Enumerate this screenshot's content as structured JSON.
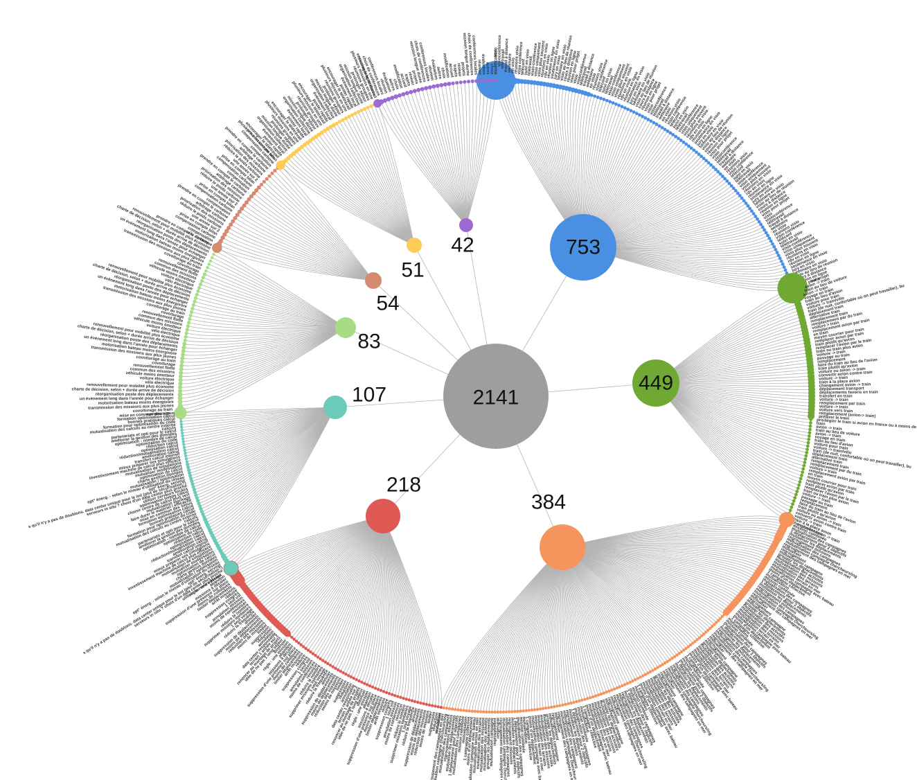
{
  "diagram": {
    "root": {
      "value": "2141",
      "color": "#9e9e9e"
    },
    "clusters": [
      {
        "id": "video",
        "value": "753",
        "color": "#4a90e2",
        "leaf_labels": [
          "visio",
          "visioconférence",
          "télétravail",
          "travail à distance",
          "webinaire",
          "en visio",
          "réunions visio",
          "visio conférence",
          "téléconf",
          "suivi en visio",
          "télétravail",
          "visio-conférence",
          "visio uniquement",
          "visio plus souvent",
          "réunions en visio",
          "rdv en visio",
          "réunion en ligne",
          "soutenance en visio",
          "jury en visio",
          "séminaire en visio",
          "visio au lieu de réunion",
          "cours à distance",
          "réunion en ligne",
          "visio pour projet"
        ]
      },
      {
        "id": "train",
        "value": "449",
        "color": "#6fa832",
        "leaf_labels": [
          "train",
          "avion -> train",
          "train au lieu de voiture",
          "avion -> train",
          "voyage en train",
          "train au lieu d'avion",
          "voiture pour train",
          "voiture -> train/vélo",
          "train (de nuit, confortable où on peut travailler), bu",
          "déplacement train",
          "alternative train",
          "remplacement train",
          "remplacement par du train",
          "voiture > train",
          "remplacement avion par train",
          "en train",
          "moyen courrier pour train",
          "remplacer avion par train",
          "train plutôt qu'avion",
          "remplacer l'avion par le train",
          "train ou train plus avion",
          "voiture -> train",
          "passage au train",
          "remplacement",
          "faire du train au lieu de l'avion",
          "train plutôt qu'avion",
          "voiture ou avion -> train",
          "convertir avion contre train",
          "voiture -> train",
          "train à la place avion",
          "changement avion -> train",
          "déplacement transport",
          "déplacements favoris en train",
          "transfert en train",
          "voiture -> train",
          "remplacement par train",
          "voiture -> train",
          "voiture vers train",
          "remplacement (avion-> train)",
          "préférer le train",
          "privilégier le train si avion en france ou à moins de x heures"
        ]
      },
      {
        "id": "mutualisation",
        "value": "384",
        "color": "#f5945c",
        "leaf_labels": [
          "mutualisation",
          "mission combinée",
          "mutualisation des campagnes",
          "1 déplacement pour 2 objectifs",
          "mutualiser les déplacements",
          "regroupement missions",
          "mutualisation des campagnes",
          "mutualisation campagne chercheurs/ing",
          "regroupement des campagnes en mer",
          "mutualiser",
          "regroupement",
          "mutualisation campagne",
          "grouper les déplacements",
          "mutualisation des activités",
          "mutualisation des missions",
          "mutualisation des terrains",
          "mutualisation terrain en mer",
          "mutualisation campagne avec bateau",
          "moins d'un déplacement",
          "1 campagne collective"
        ]
      },
      {
        "id": "reduction",
        "value": "218",
        "color": "#e05a55",
        "leaf_labels": [
          "annulation",
          "réduction",
          "suppression",
          "limiter",
          "moins de missions",
          "réduction des missions",
          "moins de déplacements",
          "suppression de déplacements",
          "annuler",
          "réduire la fréquence",
          "1 seul voyage",
          "supprimer missions lointaines",
          "réduire le nombre",
          "renoncer",
          "moins de conférences",
          "annulation mission",
          "1 seul vol",
          "suppression congrès",
          "réduire",
          "arrêt missions",
          "limiter déplacements",
          "moins de colloques",
          "suppression d'une présence sur place",
          "missions à décaler",
          "abandon",
          "règle : une mission",
          "diminuer",
          "idée de ne pas 1 long séjour",
          "renoncer au montage de projets",
          "terrain 1 année sur 2",
          "data center responsable"
        ]
      },
      {
        "id": "calcul",
        "value": "107",
        "color": "#6ccbb8",
        "leaf_labels": [
          "utiliser serveurs locaux",
          "serveurs in situ ? choix d'un data center plus proche",
          "s qu'il n'y a pas de doublons. data center unique pour le lml (plut de sécurisation?)",
          "opt° énerg. serveur",
          "opt° énerg. - selon le niveau d'utilisation du réseau",
          "mutualisation / optimisation",
          "charte gestion données",
          "optimisation de calcul",
          "mutualiser modélisation",
          "mutualisation de simulations",
          "investissement machine de calcul plus efficace",
          "mieux préparer ses simulations",
          "transfert calcul intensif",
          "amélioration calcul",
          "réduction/mutualisation calcul",
          "optimisation calcul",
          "réduction calcul",
          "optimisation du code",
          "optimisation - nombre de calcul",
          "améliorer la gestion des données",
          "partenariats et opti pour le calcul",
          "calculs",
          "mutualisation des calculs au centre externe",
          "formation pour optimisation du code",
          "bonnes pratiques calcul",
          "formation optimisation calcul",
          "mise en commun des simus",
          "faire durer le matériel / efficacité",
          "mutualisation stockage",
          "choisir centre de calcul plus vert",
          "optimisation temps calcul"
        ]
      },
      {
        "id": "transport",
        "value": "83",
        "color": "#a8dc84",
        "leaf_labels": [
          "covoiturage",
          "covoiturage au train",
          "transmission des missions aux plus jeunes",
          "motorisation bateau moins énergivore",
          "un évènement long dans l'année pour échanger",
          "réorganisation poste des déplacements",
          "charte de décision, selon + durée arrive de décision",
          "renouvellement pour mobilité plus économe",
          "vélo électrique",
          "voiture électrique",
          "véhicule moins émetteur",
          "commun des missions",
          "renouvellement flotte"
        ]
      },
      {
        "id": "compensation",
        "value": "54",
        "color": "#d48a6f",
        "leaf_labels": [
          "prendre en compte le carbone",
          "compensation",
          "compensation carbone",
          "prise en compte bilan",
          "une année sur 2",
          "réduire le poids carbone",
          "priorisation des missions",
          "arbitrage carbone"
        ]
      },
      {
        "id": "organisation",
        "value": "51",
        "color": "#ffcb57",
        "leaf_labels": [
          "plusieurs missions en une",
          "encourager le télétravail",
          "poster rapide",
          "évènement local",
          "organisation collective",
          "mission longue durée",
          "prolonger séjour",
          "réunions groupées"
        ]
      },
      {
        "id": "autres",
        "value": "42",
        "color": "#9b6bd0",
        "leaf_labels": [
          "mission longue durée",
          "choix de conférences",
          "conférences locales",
          "réunion",
          "évaluation",
          "autres",
          "choix",
          "modification",
          "accueil",
          "trajets",
          "réseau",
          "projets"
        ]
      }
    ],
    "colors": {
      "link": "#b3b3b3",
      "label": "#111111"
    }
  }
}
